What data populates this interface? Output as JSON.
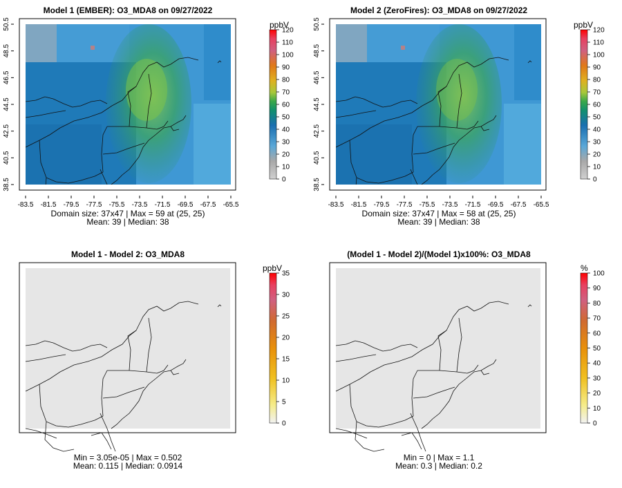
{
  "colors": {
    "field_low": "#4aa3dc",
    "field_mid": "#1878b8",
    "field_high": "#2e9a6c",
    "plume": "#7cc24a",
    "diff_fill": "#e6e6e6",
    "scale_top": "#ff0000"
  },
  "chart_data": [
    {
      "type": "heatmap",
      "title": "Model 1 (EMBER): O3_MDA8 on 09/27/2022",
      "units": "ppbV",
      "x_ticks": [
        "-83.5",
        "-81.5",
        "-79.5",
        "-77.5",
        "-75.5",
        "-73.5",
        "-71.5",
        "-69.5",
        "-67.5",
        "-65.5"
      ],
      "y_ticks": [
        "38.5",
        "40.5",
        "42.5",
        "44.5",
        "46.5",
        "48.5",
        "50.5"
      ],
      "colorbar_ticks": [
        "0",
        "10",
        "20",
        "30",
        "40",
        "50",
        "60",
        "70",
        "80",
        "90",
        "100",
        "110",
        "120"
      ],
      "xlim": [
        -83.5,
        -65.5
      ],
      "ylim": [
        38.5,
        50.5
      ],
      "stats_line1": "Domain size: 37x47 | Max = 59 at (25, 25)",
      "stats_line2": "Mean: 39 |  Median: 38"
    },
    {
      "type": "heatmap",
      "title": "Model 2 (ZeroFires): O3_MDA8 on 09/27/2022",
      "units": "ppbV",
      "x_ticks": [
        "-83.5",
        "-81.5",
        "-79.5",
        "-77.5",
        "-75.5",
        "-73.5",
        "-71.5",
        "-69.5",
        "-67.5",
        "-65.5"
      ],
      "y_ticks": [
        "38.5",
        "40.5",
        "42.5",
        "44.5",
        "46.5",
        "48.5",
        "50.5"
      ],
      "colorbar_ticks": [
        "0",
        "10",
        "20",
        "30",
        "40",
        "50",
        "60",
        "70",
        "80",
        "90",
        "100",
        "110",
        "120"
      ],
      "xlim": [
        -83.5,
        -65.5
      ],
      "ylim": [
        38.5,
        50.5
      ],
      "stats_line1": "Domain size: 37x47 | Max = 58 at (25, 25)",
      "stats_line2": "Mean: 39 |  Median: 38"
    },
    {
      "type": "heatmap",
      "title": "Model 1 - Model 2: O3_MDA8",
      "units": "ppbV",
      "colorbar_ticks": [
        "0",
        "5",
        "10",
        "15",
        "20",
        "25",
        "30",
        "35"
      ],
      "stats_line1": "Min = 3.05e-05 | Max = 0.502",
      "stats_line2": "Mean: 0.115 |  Median: 0.0914"
    },
    {
      "type": "heatmap",
      "title": "(Model 1 - Model 2)/(Model 1)x100%: O3_MDA8",
      "units": "%",
      "colorbar_ticks": [
        "0",
        "10",
        "20",
        "30",
        "40",
        "50",
        "60",
        "70",
        "80",
        "90",
        "100"
      ],
      "stats_line1": "Min = 0 | Max = 1.1",
      "stats_line2": "Mean: 0.3 |  Median: 0.2"
    }
  ]
}
